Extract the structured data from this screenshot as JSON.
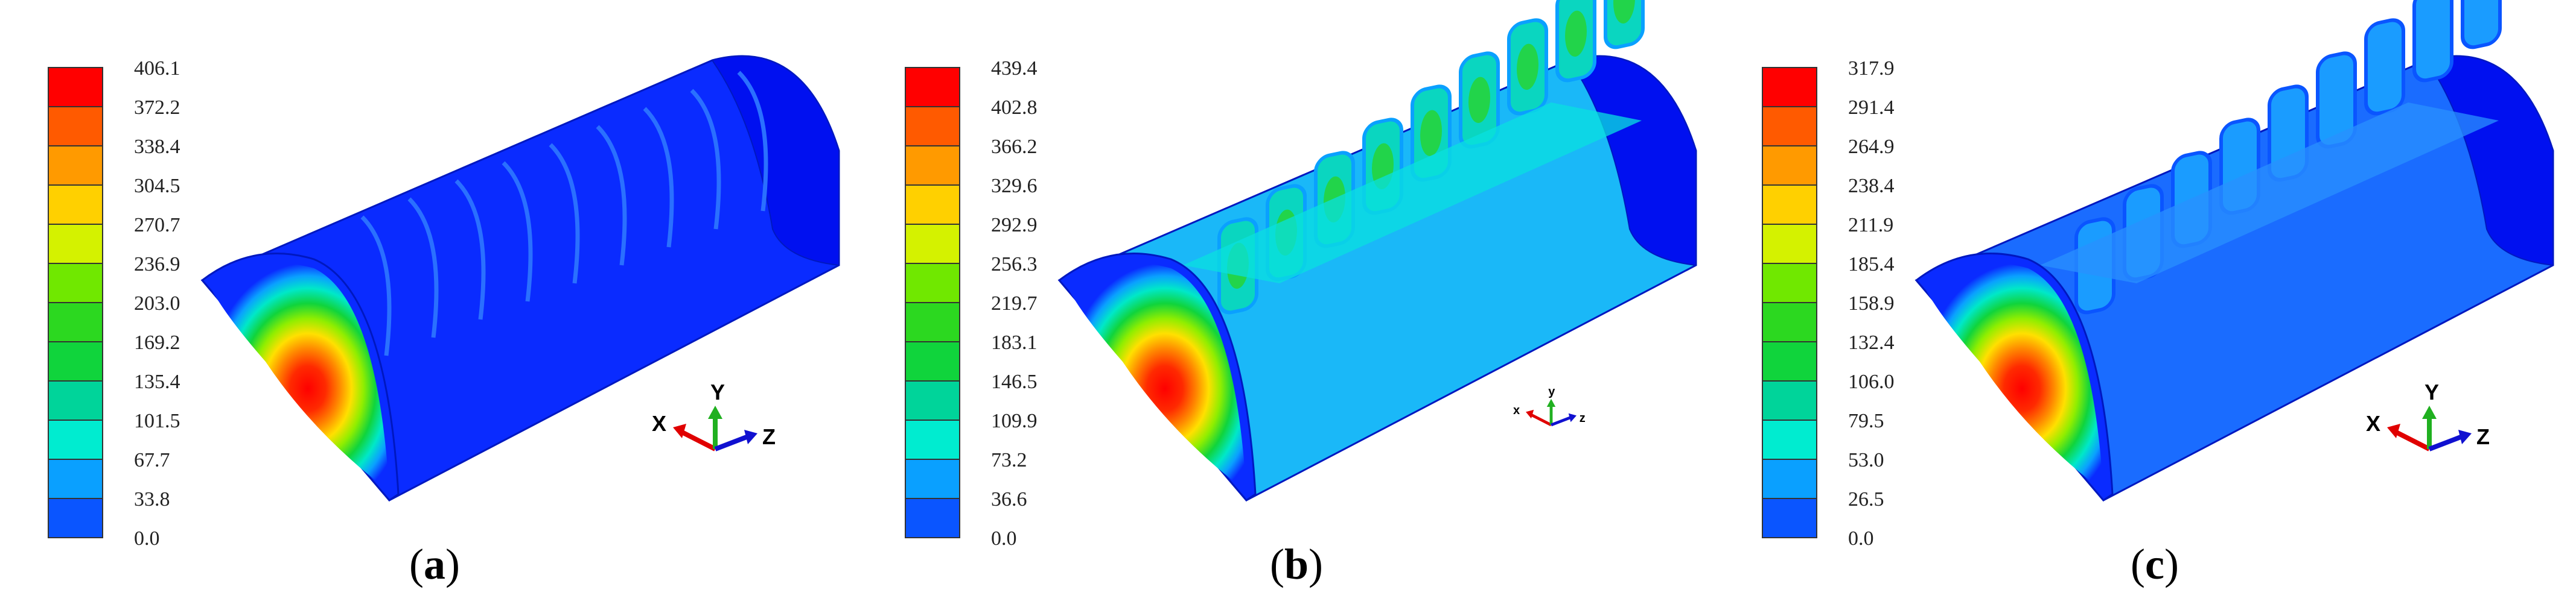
{
  "palette": [
    "#0000ff",
    "#0a55ff",
    "#0aa0ff",
    "#00ecd0",
    "#00d49a",
    "#10d43c",
    "#2cd820",
    "#70e800",
    "#d4f200",
    "#ffd000",
    "#ff9a00",
    "#ff5a00",
    "#ff0000"
  ],
  "panels": [
    {
      "id": "a",
      "caption": "a",
      "colorbar": [
        "406.1",
        "372.2",
        "338.4",
        "304.5",
        "270.7",
        "236.9",
        "203.0",
        "169.2",
        "135.4",
        "101.5",
        "67.7",
        "33.8",
        "0.0"
      ],
      "axes": {
        "x": "X",
        "y": "Y",
        "z": "Z"
      },
      "body_color": "#0a2bff"
    },
    {
      "id": "b",
      "caption": "b",
      "colorbar": [
        "439.4",
        "402.8",
        "366.2",
        "329.6",
        "292.9",
        "256.3",
        "219.7",
        "183.1",
        "146.5",
        "109.9",
        "73.2",
        "36.6",
        "0.0"
      ],
      "axes": {
        "x": "x",
        "y": "y",
        "z": "z"
      },
      "body_color": "#1ab8f8"
    },
    {
      "id": "c",
      "caption": "c",
      "colorbar": [
        "317.9",
        "291.4",
        "264.9",
        "238.4",
        "211.9",
        "185.4",
        "158.9",
        "132.4",
        "106.0",
        "79.5",
        "53.0",
        "26.5",
        "0.0"
      ],
      "axes": {
        "x": "X",
        "y": "Y",
        "z": "Z"
      },
      "body_color": "#1a6cff"
    }
  ]
}
